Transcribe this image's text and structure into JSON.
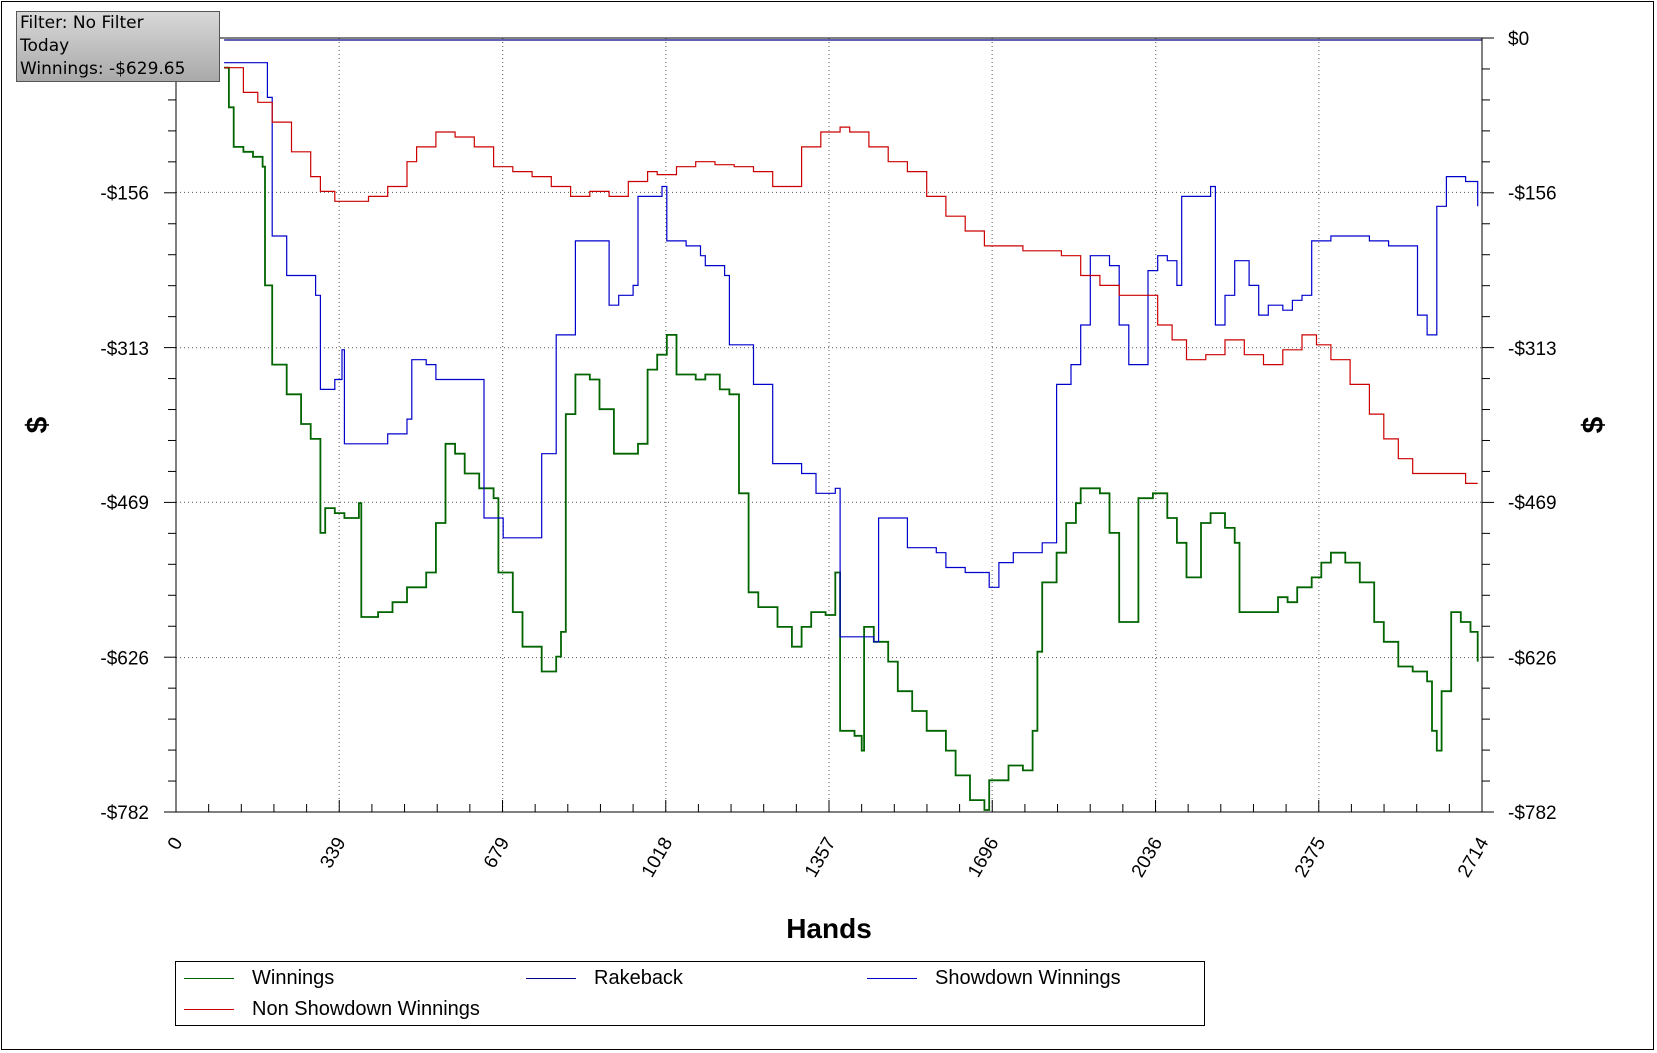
{
  "info_box": {
    "filter": "Filter: No Filter",
    "period": "Today",
    "winnings": "Winnings: -$629.65"
  },
  "chart_data": {
    "type": "line",
    "title": "",
    "xlabel": "Hands",
    "ylabel": "$",
    "xlim": [
      0,
      2714
    ],
    "ylim": [
      -782,
      0
    ],
    "x_ticks": [
      "0",
      "339",
      "679",
      "1018",
      "1357",
      "1696",
      "2036",
      "2375",
      "2714"
    ],
    "y_ticks": [
      "$0",
      "-$156",
      "-$313",
      "-$469",
      "-$626",
      "-$782"
    ],
    "grid": true,
    "legend_position": "bottom",
    "series": [
      {
        "name": "Winnings",
        "color": "#006400",
        "points": [
          [
            100,
            -30
          ],
          [
            110,
            -70
          ],
          [
            120,
            -110
          ],
          [
            140,
            -115
          ],
          [
            160,
            -120
          ],
          [
            180,
            -130
          ],
          [
            185,
            -250
          ],
          [
            200,
            -330
          ],
          [
            230,
            -360
          ],
          [
            260,
            -390
          ],
          [
            280,
            -405
          ],
          [
            300,
            -500
          ],
          [
            310,
            -475
          ],
          [
            330,
            -480
          ],
          [
            350,
            -485
          ],
          [
            380,
            -470
          ],
          [
            385,
            -585
          ],
          [
            420,
            -580
          ],
          [
            450,
            -570
          ],
          [
            480,
            -555
          ],
          [
            520,
            -540
          ],
          [
            540,
            -490
          ],
          [
            560,
            -410
          ],
          [
            580,
            -420
          ],
          [
            600,
            -440
          ],
          [
            630,
            -455
          ],
          [
            660,
            -465
          ],
          [
            670,
            -540
          ],
          [
            700,
            -580
          ],
          [
            720,
            -615
          ],
          [
            760,
            -640
          ],
          [
            790,
            -625
          ],
          [
            800,
            -600
          ],
          [
            810,
            -380
          ],
          [
            830,
            -340
          ],
          [
            860,
            -345
          ],
          [
            880,
            -375
          ],
          [
            900,
            -375
          ],
          [
            910,
            -420
          ],
          [
            940,
            -420
          ],
          [
            960,
            -410
          ],
          [
            980,
            -335
          ],
          [
            1000,
            -320
          ],
          [
            1020,
            -300
          ],
          [
            1030,
            -300
          ],
          [
            1040,
            -340
          ],
          [
            1080,
            -345
          ],
          [
            1100,
            -340
          ],
          [
            1130,
            -355
          ],
          [
            1150,
            -360
          ],
          [
            1170,
            -460
          ],
          [
            1190,
            -560
          ],
          [
            1210,
            -575
          ],
          [
            1250,
            -595
          ],
          [
            1280,
            -615
          ],
          [
            1300,
            -595
          ],
          [
            1320,
            -580
          ],
          [
            1350,
            -583
          ],
          [
            1370,
            -540
          ],
          [
            1380,
            -700
          ],
          [
            1410,
            -705
          ],
          [
            1425,
            -720
          ],
          [
            1430,
            -595
          ],
          [
            1450,
            -610
          ],
          [
            1480,
            -630
          ],
          [
            1500,
            -660
          ],
          [
            1530,
            -680
          ],
          [
            1560,
            -700
          ],
          [
            1600,
            -720
          ],
          [
            1620,
            -745
          ],
          [
            1650,
            -770
          ],
          [
            1680,
            -780
          ],
          [
            1690,
            -750
          ],
          [
            1730,
            -735
          ],
          [
            1760,
            -740
          ],
          [
            1780,
            -700
          ],
          [
            1790,
            -620
          ],
          [
            1800,
            -550
          ],
          [
            1830,
            -520
          ],
          [
            1850,
            -490
          ],
          [
            1870,
            -470
          ],
          [
            1880,
            -455
          ],
          [
            1920,
            -460
          ],
          [
            1940,
            -500
          ],
          [
            1960,
            -590
          ],
          [
            1990,
            -590
          ],
          [
            2000,
            -465
          ],
          [
            2030,
            -460
          ],
          [
            2060,
            -485
          ],
          [
            2080,
            -510
          ],
          [
            2100,
            -545
          ],
          [
            2130,
            -490
          ],
          [
            2150,
            -480
          ],
          [
            2180,
            -495
          ],
          [
            2200,
            -510
          ],
          [
            2210,
            -580
          ],
          [
            2250,
            -580
          ],
          [
            2270,
            -580
          ],
          [
            2290,
            -565
          ],
          [
            2310,
            -570
          ],
          [
            2330,
            -555
          ],
          [
            2360,
            -545
          ],
          [
            2380,
            -530
          ],
          [
            2400,
            -520
          ],
          [
            2430,
            -530
          ],
          [
            2460,
            -550
          ],
          [
            2490,
            -590
          ],
          [
            2510,
            -610
          ],
          [
            2540,
            -635
          ],
          [
            2570,
            -640
          ],
          [
            2600,
            -650
          ],
          [
            2610,
            -700
          ],
          [
            2620,
            -720
          ],
          [
            2630,
            -660
          ],
          [
            2650,
            -580
          ],
          [
            2670,
            -590
          ],
          [
            2690,
            -600
          ],
          [
            2705,
            -630
          ]
        ]
      },
      {
        "name": "Rakeback",
        "color": "#00008b",
        "points": [
          [
            100,
            -2
          ],
          [
            2714,
            -2
          ]
        ]
      },
      {
        "name": "Showdown Winnings",
        "color": "#0000cd",
        "points": [
          [
            100,
            -25
          ],
          [
            190,
            -60
          ],
          [
            200,
            -200
          ],
          [
            230,
            -240
          ],
          [
            290,
            -260
          ],
          [
            300,
            -355
          ],
          [
            330,
            -345
          ],
          [
            345,
            -315
          ],
          [
            350,
            -410
          ],
          [
            400,
            -410
          ],
          [
            440,
            -400
          ],
          [
            480,
            -385
          ],
          [
            490,
            -325
          ],
          [
            520,
            -330
          ],
          [
            540,
            -345
          ],
          [
            600,
            -345
          ],
          [
            640,
            -485
          ],
          [
            680,
            -505
          ],
          [
            730,
            -505
          ],
          [
            760,
            -420
          ],
          [
            790,
            -300
          ],
          [
            830,
            -205
          ],
          [
            890,
            -205
          ],
          [
            900,
            -270
          ],
          [
            920,
            -260
          ],
          [
            950,
            -250
          ],
          [
            960,
            -160
          ],
          [
            1010,
            -150
          ],
          [
            1020,
            -205
          ],
          [
            1060,
            -210
          ],
          [
            1090,
            -220
          ],
          [
            1100,
            -230
          ],
          [
            1140,
            -240
          ],
          [
            1150,
            -310
          ],
          [
            1200,
            -350
          ],
          [
            1240,
            -430
          ],
          [
            1300,
            -440
          ],
          [
            1330,
            -460
          ],
          [
            1360,
            -460
          ],
          [
            1370,
            -455
          ],
          [
            1380,
            -605
          ],
          [
            1450,
            -610
          ],
          [
            1460,
            -485
          ],
          [
            1500,
            -485
          ],
          [
            1520,
            -515
          ],
          [
            1580,
            -520
          ],
          [
            1600,
            -535
          ],
          [
            1640,
            -540
          ],
          [
            1660,
            -540
          ],
          [
            1690,
            -555
          ],
          [
            1710,
            -530
          ],
          [
            1740,
            -520
          ],
          [
            1760,
            -520
          ],
          [
            1800,
            -510
          ],
          [
            1830,
            -350
          ],
          [
            1860,
            -330
          ],
          [
            1880,
            -290
          ],
          [
            1900,
            -220
          ],
          [
            1940,
            -230
          ],
          [
            1960,
            -290
          ],
          [
            1980,
            -330
          ],
          [
            2010,
            -330
          ],
          [
            2020,
            -235
          ],
          [
            2040,
            -220
          ],
          [
            2060,
            -225
          ],
          [
            2080,
            -250
          ],
          [
            2090,
            -160
          ],
          [
            2130,
            -160
          ],
          [
            2150,
            -150
          ],
          [
            2160,
            -290
          ],
          [
            2180,
            -260
          ],
          [
            2200,
            -225
          ],
          [
            2230,
            -250
          ],
          [
            2250,
            -280
          ],
          [
            2270,
            -270
          ],
          [
            2300,
            -275
          ],
          [
            2320,
            -265
          ],
          [
            2340,
            -260
          ],
          [
            2360,
            -205
          ],
          [
            2400,
            -200
          ],
          [
            2440,
            -200
          ],
          [
            2480,
            -205
          ],
          [
            2520,
            -210
          ],
          [
            2560,
            -210
          ],
          [
            2580,
            -280
          ],
          [
            2600,
            -300
          ],
          [
            2620,
            -170
          ],
          [
            2640,
            -140
          ],
          [
            2680,
            -145
          ],
          [
            2705,
            -170
          ]
        ]
      },
      {
        "name": "Non Showdown Winnings",
        "color": "#cc0000",
        "points": [
          [
            100,
            -30
          ],
          [
            140,
            -55
          ],
          [
            170,
            -65
          ],
          [
            200,
            -85
          ],
          [
            240,
            -115
          ],
          [
            280,
            -140
          ],
          [
            300,
            -155
          ],
          [
            330,
            -165
          ],
          [
            360,
            -165
          ],
          [
            400,
            -160
          ],
          [
            440,
            -150
          ],
          [
            480,
            -125
          ],
          [
            500,
            -110
          ],
          [
            540,
            -95
          ],
          [
            580,
            -100
          ],
          [
            620,
            -110
          ],
          [
            660,
            -130
          ],
          [
            700,
            -135
          ],
          [
            740,
            -140
          ],
          [
            780,
            -150
          ],
          [
            820,
            -160
          ],
          [
            860,
            -155
          ],
          [
            900,
            -160
          ],
          [
            940,
            -145
          ],
          [
            980,
            -135
          ],
          [
            1000,
            -138
          ],
          [
            1040,
            -130
          ],
          [
            1080,
            -125
          ],
          [
            1120,
            -128
          ],
          [
            1160,
            -130
          ],
          [
            1200,
            -135
          ],
          [
            1240,
            -150
          ],
          [
            1280,
            -150
          ],
          [
            1300,
            -110
          ],
          [
            1340,
            -95
          ],
          [
            1380,
            -90
          ],
          [
            1400,
            -95
          ],
          [
            1440,
            -110
          ],
          [
            1480,
            -125
          ],
          [
            1520,
            -135
          ],
          [
            1560,
            -160
          ],
          [
            1600,
            -180
          ],
          [
            1640,
            -195
          ],
          [
            1680,
            -210
          ],
          [
            1720,
            -210
          ],
          [
            1760,
            -215
          ],
          [
            1800,
            -215
          ],
          [
            1840,
            -220
          ],
          [
            1880,
            -240
          ],
          [
            1920,
            -250
          ],
          [
            1960,
            -260
          ],
          [
            2000,
            -260
          ],
          [
            2040,
            -290
          ],
          [
            2070,
            -305
          ],
          [
            2100,
            -325
          ],
          [
            2140,
            -320
          ],
          [
            2180,
            -305
          ],
          [
            2220,
            -320
          ],
          [
            2260,
            -330
          ],
          [
            2300,
            -315
          ],
          [
            2340,
            -300
          ],
          [
            2370,
            -310
          ],
          [
            2400,
            -325
          ],
          [
            2440,
            -350
          ],
          [
            2480,
            -380
          ],
          [
            2510,
            -405
          ],
          [
            2540,
            -425
          ],
          [
            2570,
            -440
          ],
          [
            2600,
            -440
          ],
          [
            2640,
            -440
          ],
          [
            2680,
            -450
          ],
          [
            2705,
            -450
          ]
        ]
      }
    ]
  }
}
